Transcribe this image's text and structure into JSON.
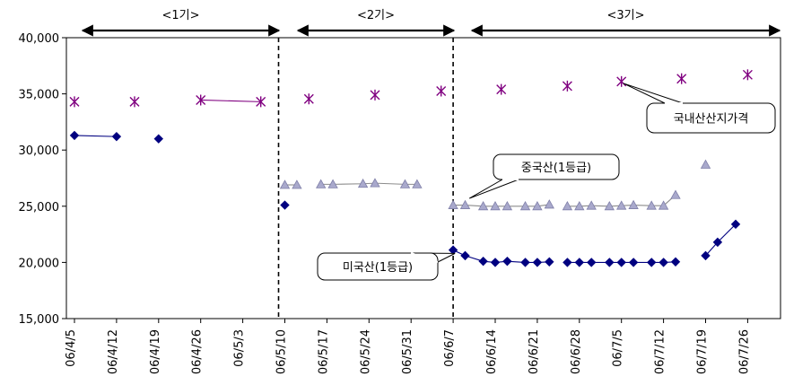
{
  "chart_data": {
    "type": "line",
    "title": "",
    "xlabel": "",
    "ylabel": "",
    "ylim": [
      15000,
      40000
    ],
    "yticks": [
      15000,
      20000,
      25000,
      30000,
      35000,
      40000
    ],
    "ytick_labels": [
      "15,000",
      "20,000",
      "25,000",
      "30,000",
      "35,000",
      "40,000"
    ],
    "x_start": "2006-04-05",
    "x_end": "2006-07-31",
    "xticks": [
      {
        "date": "2006-04-05",
        "label": "06/4/5"
      },
      {
        "date": "2006-04-12",
        "label": "06/4/12"
      },
      {
        "date": "2006-04-19",
        "label": "06/4/19"
      },
      {
        "date": "2006-04-26",
        "label": "06/4/26"
      },
      {
        "date": "2006-05-03",
        "label": "06/5/3"
      },
      {
        "date": "2006-05-10",
        "label": "06/5/10"
      },
      {
        "date": "2006-05-17",
        "label": "06/5/17"
      },
      {
        "date": "2006-05-24",
        "label": "06/5/24"
      },
      {
        "date": "2006-05-31",
        "label": "06/5/31"
      },
      {
        "date": "2006-06-07",
        "label": "06/6/7"
      },
      {
        "date": "2006-06-14",
        "label": "06/6/14"
      },
      {
        "date": "2006-06-21",
        "label": "06/6/21"
      },
      {
        "date": "2006-06-28",
        "label": "06/6/28"
      },
      {
        "date": "2006-07-05",
        "label": "06/7/5"
      },
      {
        "date": "2006-07-12",
        "label": "06/7/12"
      },
      {
        "date": "2006-07-19",
        "label": "06/7/19"
      },
      {
        "date": "2006-07-26",
        "label": "06/7/26"
      }
    ],
    "grid": false,
    "legend": "none",
    "periods": [
      {
        "label": "<1기>",
        "start": "2006-04-05",
        "end": "2006-05-08"
      },
      {
        "label": "<2기>",
        "start": "2006-05-09",
        "end": "2006-06-07"
      },
      {
        "label": "<3기>",
        "start": "2006-06-07",
        "end": "2006-07-31"
      }
    ],
    "dividers": [
      "2006-05-10",
      "2006-06-07"
    ],
    "series": [
      {
        "name": "국내산산지가격",
        "marker": "asterisk",
        "color": "#800080",
        "segments": [
          [
            {
              "x": "2006-04-05",
              "y": 34300
            }
          ],
          [
            {
              "x": "2006-04-15",
              "y": 34300
            }
          ],
          [
            {
              "x": "2006-04-26",
              "y": 34450
            },
            {
              "x": "2006-05-06",
              "y": 34300
            }
          ],
          [
            {
              "x": "2006-05-14",
              "y": 34550
            }
          ],
          [
            {
              "x": "2006-05-25",
              "y": 34900
            }
          ],
          [
            {
              "x": "2006-06-05",
              "y": 35250
            }
          ],
          [
            {
              "x": "2006-06-15",
              "y": 35400
            }
          ],
          [
            {
              "x": "2006-06-26",
              "y": 35700
            }
          ],
          [
            {
              "x": "2006-07-05",
              "y": 36100
            }
          ],
          [
            {
              "x": "2006-07-15",
              "y": 36350
            }
          ],
          [
            {
              "x": "2006-07-26",
              "y": 36700
            }
          ]
        ]
      },
      {
        "name": "중국산(1등급)",
        "marker": "triangle",
        "color": "#A9A9CC",
        "segments": [
          [
            {
              "x": "2006-05-10",
              "y": 26900
            },
            {
              "x": "2006-05-12",
              "y": 26900
            }
          ],
          [
            {
              "x": "2006-05-16",
              "y": 26950
            },
            {
              "x": "2006-05-18",
              "y": 26950
            },
            {
              "x": "2006-05-23",
              "y": 27000
            },
            {
              "x": "2006-05-25",
              "y": 27050
            },
            {
              "x": "2006-05-30",
              "y": 26950
            },
            {
              "x": "2006-06-01",
              "y": 26950
            }
          ],
          [
            {
              "x": "2006-06-07",
              "y": 25100
            },
            {
              "x": "2006-06-09",
              "y": 25100
            },
            {
              "x": "2006-06-12",
              "y": 25000
            },
            {
              "x": "2006-06-14",
              "y": 25000
            },
            {
              "x": "2006-06-16",
              "y": 25000
            },
            {
              "x": "2006-06-19",
              "y": 25000
            },
            {
              "x": "2006-06-21",
              "y": 25000
            },
            {
              "x": "2006-06-23",
              "y": 25150
            }
          ],
          [
            {
              "x": "2006-06-26",
              "y": 25000
            },
            {
              "x": "2006-06-28",
              "y": 25000
            },
            {
              "x": "2006-06-30",
              "y": 25050
            },
            {
              "x": "2006-07-03",
              "y": 25000
            },
            {
              "x": "2006-07-05",
              "y": 25050
            },
            {
              "x": "2006-07-07",
              "y": 25100
            },
            {
              "x": "2006-07-10",
              "y": 25050
            },
            {
              "x": "2006-07-12",
              "y": 25050
            },
            {
              "x": "2006-07-14",
              "y": 26000
            }
          ],
          [
            {
              "x": "2006-07-19",
              "y": 28700
            }
          ]
        ]
      },
      {
        "name": "미국산(1등급)",
        "marker": "diamond",
        "color": "#000080",
        "segments": [
          [
            {
              "x": "2006-04-05",
              "y": 31300
            },
            {
              "x": "2006-04-12",
              "y": 31200
            }
          ],
          [
            {
              "x": "2006-04-19",
              "y": 31000
            }
          ],
          [
            {
              "x": "2006-05-10",
              "y": 25100
            }
          ],
          [
            {
              "x": "2006-06-07",
              "y": 21100
            },
            {
              "x": "2006-06-09",
              "y": 20600
            },
            {
              "x": "2006-06-12",
              "y": 20100
            },
            {
              "x": "2006-06-14",
              "y": 20000
            },
            {
              "x": "2006-06-16",
              "y": 20100
            },
            {
              "x": "2006-06-19",
              "y": 20000
            },
            {
              "x": "2006-06-21",
              "y": 20000
            },
            {
              "x": "2006-06-23",
              "y": 20050
            }
          ],
          [
            {
              "x": "2006-06-26",
              "y": 20000
            },
            {
              "x": "2006-06-28",
              "y": 20000
            },
            {
              "x": "2006-06-30",
              "y": 20000
            },
            {
              "x": "2006-07-03",
              "y": 20000
            },
            {
              "x": "2006-07-05",
              "y": 20000
            },
            {
              "x": "2006-07-07",
              "y": 20000
            },
            {
              "x": "2006-07-10",
              "y": 20000
            },
            {
              "x": "2006-07-12",
              "y": 20000
            },
            {
              "x": "2006-07-14",
              "y": 20050
            }
          ],
          [
            {
              "x": "2006-07-19",
              "y": 20600
            },
            {
              "x": "2006-07-21",
              "y": 21800
            },
            {
              "x": "2006-07-24",
              "y": 23400
            }
          ]
        ]
      }
    ],
    "callouts": [
      {
        "series_index": 0,
        "text": "국내산산지가격",
        "target": {
          "x": "2006-07-05",
          "y": 36100
        }
      },
      {
        "series_index": 1,
        "text": "중국산(1등급)",
        "target": {
          "x": "2006-06-10",
          "y": 25700
        }
      },
      {
        "series_index": 2,
        "text": "미국산(1등급)",
        "target": {
          "x": "2006-06-07",
          "y": 20800
        }
      }
    ]
  }
}
